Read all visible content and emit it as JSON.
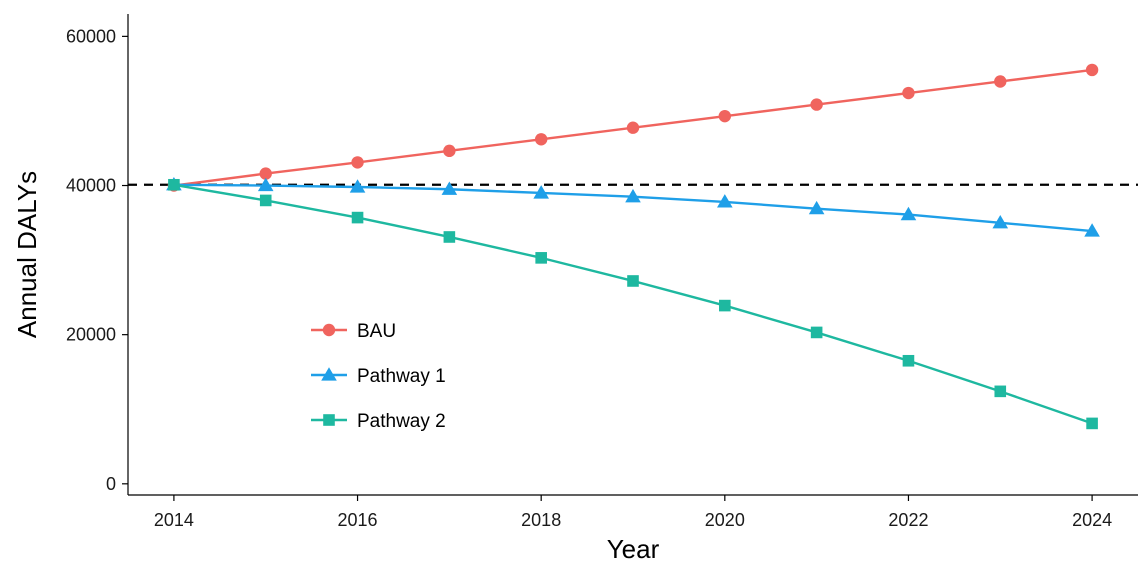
{
  "chart_data": {
    "type": "line",
    "xlabel": "Year",
    "ylabel": "Annual DALYs",
    "xlim": [
      2013.5,
      2024.5
    ],
    "ylim": [
      -1500,
      63000
    ],
    "x_ticks": [
      2014,
      2016,
      2018,
      2020,
      2022,
      2024
    ],
    "y_ticks": [
      0,
      20000,
      40000,
      60000
    ],
    "grid": false,
    "legend_position": "bottom-left inside",
    "reference_line": {
      "y": 40100,
      "style": "dashed",
      "color": "#000000"
    },
    "x": [
      2014,
      2015,
      2016,
      2017,
      2018,
      2019,
      2020,
      2021,
      2022,
      2023,
      2024
    ],
    "series": [
      {
        "name": "BAU",
        "color": "#F0645E",
        "marker": "circle",
        "values": [
          40000,
          41600,
          43100,
          44650,
          46200,
          47750,
          49300,
          50850,
          52400,
          53950,
          55500
        ]
      },
      {
        "name": "Pathway 1",
        "color": "#1F9FE8",
        "marker": "triangle",
        "values": [
          40100,
          40000,
          39800,
          39500,
          39000,
          38500,
          37800,
          36900,
          36100,
          35000,
          33900
        ]
      },
      {
        "name": "Pathway 2",
        "color": "#1EB8A0",
        "marker": "square",
        "values": [
          40100,
          38000,
          35700,
          33100,
          30300,
          27200,
          23900,
          20300,
          16500,
          12400,
          8100
        ]
      }
    ]
  }
}
